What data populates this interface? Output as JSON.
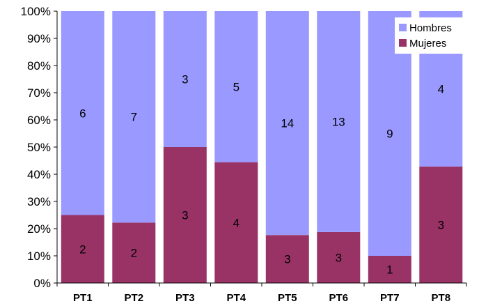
{
  "chart_data": {
    "type": "bar",
    "stacked": true,
    "normalized": true,
    "categories": [
      "PT1",
      "PT2",
      "PT3",
      "PT4",
      "PT5",
      "PT6",
      "PT7",
      "PT8"
    ],
    "series": [
      {
        "name": "Mujeres",
        "color": "#993366",
        "values": [
          2,
          2,
          3,
          4,
          3,
          3,
          1,
          3
        ]
      },
      {
        "name": "Hombres",
        "color": "#9999ff",
        "values": [
          6,
          7,
          3,
          5,
          14,
          13,
          9,
          4
        ]
      }
    ],
    "y_ticks": [
      "0%",
      "10%",
      "20%",
      "30%",
      "40%",
      "50%",
      "60%",
      "70%",
      "80%",
      "90%",
      "100%"
    ],
    "ylim": [
      0,
      100
    ],
    "legend": {
      "position": "top-right",
      "order": [
        "Hombres",
        "Mujeres"
      ]
    },
    "grid": false
  }
}
